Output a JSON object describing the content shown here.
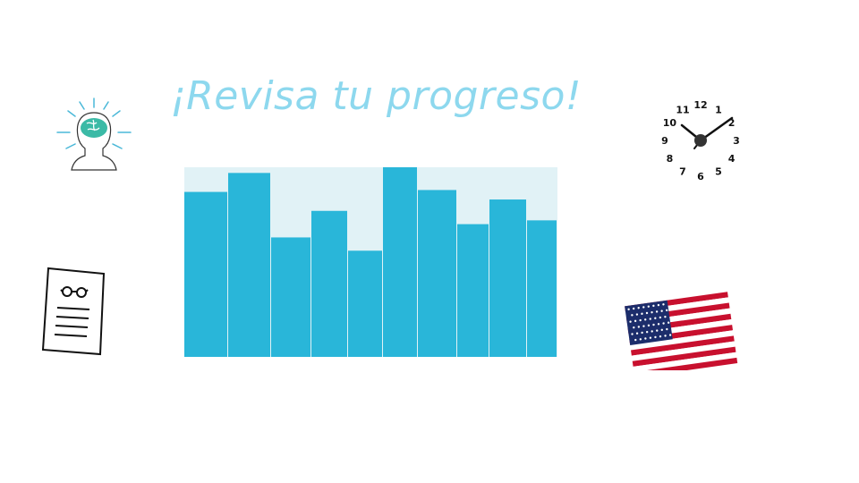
{
  "title": "¡Revisa tu progreso!",
  "colors": {
    "title": "#8dd8ee",
    "bar": "#29b6d9",
    "chart_background": "#e1f2f6"
  },
  "icons": [
    "head-brain-icon",
    "document-glasses-icon",
    "wall-clock-icon",
    "us-flag-icon"
  ],
  "clock": {
    "numbers": [
      "12",
      "1",
      "2",
      "3",
      "4",
      "5",
      "6",
      "7",
      "8",
      "9",
      "10",
      "11"
    ]
  },
  "chart_data": {
    "type": "bar",
    "values": [
      87,
      97,
      63,
      77,
      56,
      100,
      88,
      70,
      83,
      72
    ],
    "ylim": [
      0,
      100
    ],
    "grid": false,
    "legend": "none"
  }
}
